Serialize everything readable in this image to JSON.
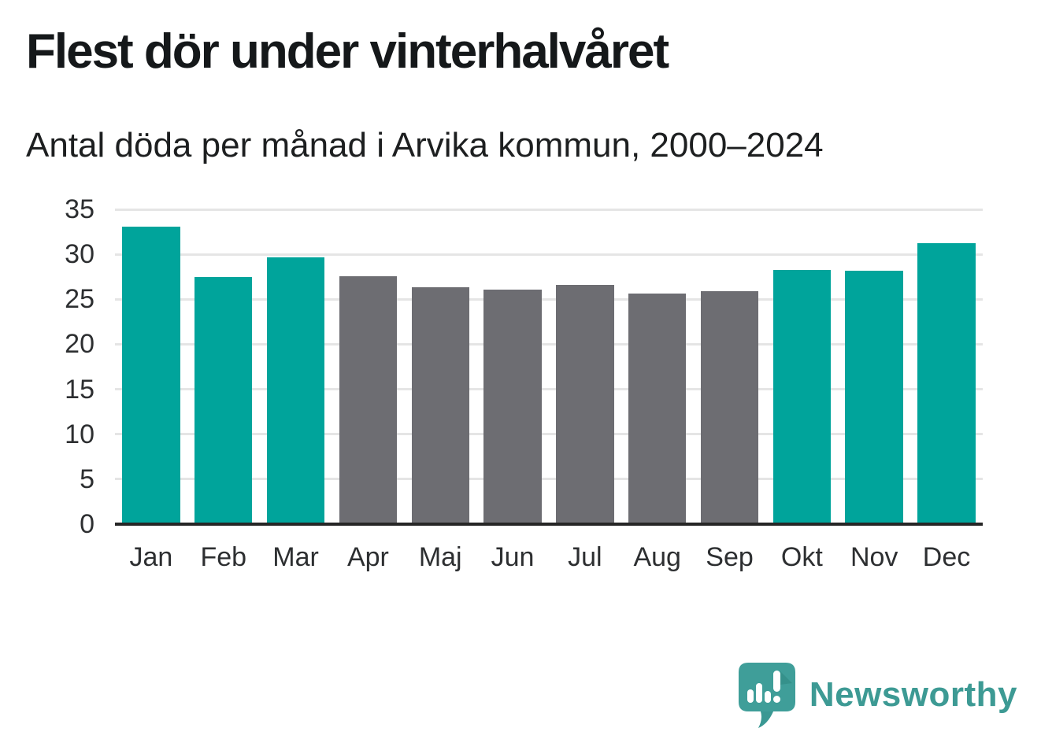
{
  "title": "Flest dör under vinterhalvåret",
  "subtitle": "Antal döda per månad i Arvika kommun, 2000–2024",
  "chart_data": {
    "type": "bar",
    "categories": [
      "Jan",
      "Feb",
      "Mar",
      "Apr",
      "Maj",
      "Jun",
      "Jul",
      "Aug",
      "Sep",
      "Okt",
      "Nov",
      "Dec"
    ],
    "values": [
      33.1,
      27.5,
      29.7,
      27.6,
      26.3,
      26.1,
      26.6,
      25.6,
      25.9,
      28.3,
      28.2,
      31.2
    ],
    "groups": [
      "winter",
      "winter",
      "winter",
      "summer",
      "summer",
      "summer",
      "summer",
      "summer",
      "summer",
      "winter",
      "winter",
      "winter"
    ],
    "group_colors": {
      "winter": "#00a49b",
      "summer": "#6d6d72"
    },
    "title": "Flest dör under vinterhalvåret",
    "xlabel": "",
    "ylabel": "",
    "ylim": [
      0,
      35
    ],
    "yticks": [
      0,
      5,
      10,
      15,
      20,
      25,
      30,
      35
    ],
    "grid": true,
    "legend": "none"
  },
  "colors": {
    "highlight": "#00a49b",
    "neutral": "#6d6d72",
    "gridline": "#e5e5e5",
    "axis_line": "#262626",
    "title_text": "#15181a",
    "tick_text": "#2d2f31",
    "brand_teal": "#3d9a94"
  },
  "branding": {
    "logo_text": "Newsworthy",
    "logo_icon": "speech-bubble-bar-chart-icon"
  }
}
